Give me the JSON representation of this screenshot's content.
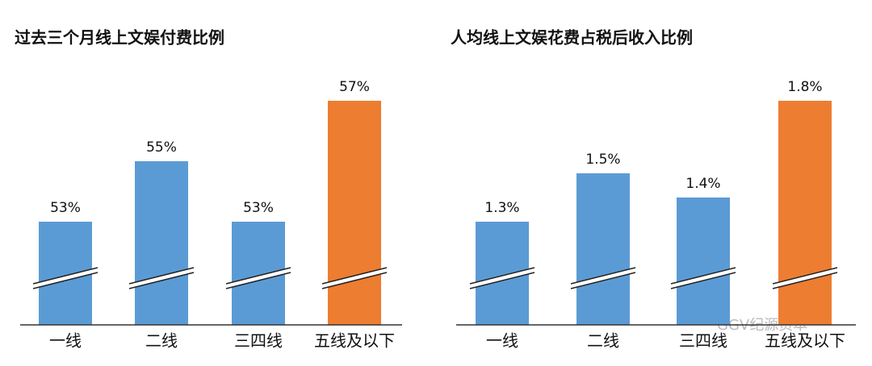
{
  "chart_data": [
    {
      "type": "bar",
      "title": "过去三个月线上文娱付费比例",
      "categories": [
        "一线",
        "二线",
        "三四线",
        "五线及以下"
      ],
      "values": [
        53,
        55,
        53,
        57
      ],
      "value_labels": [
        "53%",
        "55%",
        "53%",
        "57%"
      ],
      "colors": [
        "#5b9bd5",
        "#5b9bd5",
        "#5b9bd5",
        "#ed7d31"
      ]
    },
    {
      "type": "bar",
      "title": "人均线上文娱花费占税后收入比例",
      "categories": [
        "一线",
        "二线",
        "三四线",
        "五线及以下"
      ],
      "values": [
        1.3,
        1.5,
        1.4,
        1.8
      ],
      "value_labels": [
        "1.3%",
        "1.5%",
        "1.4%",
        "1.8%"
      ],
      "colors": [
        "#5b9bd5",
        "#5b9bd5",
        "#5b9bd5",
        "#ed7d31"
      ]
    }
  ],
  "watermark": "GGV纪源资本"
}
